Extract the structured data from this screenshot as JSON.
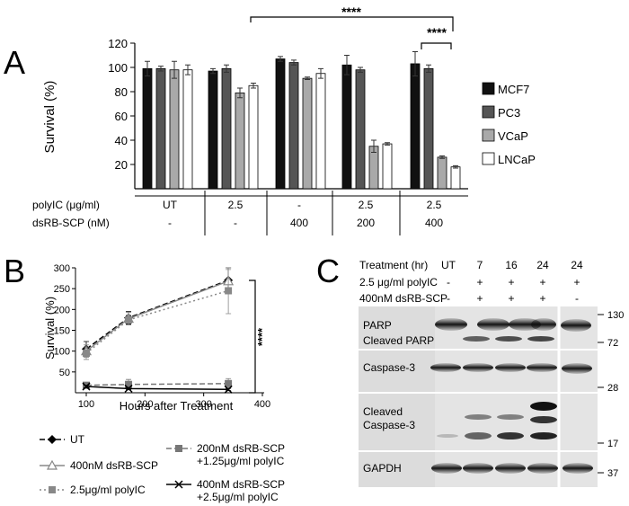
{
  "panel_a": {
    "letter": "A",
    "sig_outer": "****",
    "sig_inner": "****",
    "chart_data": {
      "type": "bar",
      "ylabel": "Survival (%)",
      "ylim": [
        0,
        120
      ],
      "yticks": [
        20,
        40,
        60,
        80,
        100,
        120
      ],
      "groups": [
        "UT",
        "2.5",
        "400",
        "2.5 / 200",
        "2.5 / 400"
      ],
      "series": [
        {
          "name": "MCF7",
          "color": "#111111",
          "values": [
            99,
            97,
            107,
            102,
            103
          ],
          "err": [
            6,
            2,
            2,
            8,
            10
          ]
        },
        {
          "name": "PC3",
          "color": "#555555",
          "values": [
            99,
            99,
            104,
            98,
            99
          ],
          "err": [
            2,
            3,
            2,
            2,
            3
          ]
        },
        {
          "name": "VCaP",
          "color": "#a9a9a9",
          "values": [
            98,
            79,
            91,
            35,
            26
          ],
          "err": [
            7,
            4,
            1,
            5,
            1
          ]
        },
        {
          "name": "LNCaP",
          "color": "#ffffff",
          "values": [
            98,
            85,
            95,
            37,
            18
          ],
          "err": [
            4,
            2,
            4,
            1,
            1
          ]
        }
      ],
      "legend_position": "right"
    },
    "table": {
      "row1_label": "polyIC (μg/ml)",
      "row2_label": "dsRB-SCP (nM)",
      "row1": [
        "UT",
        "2.5",
        "-",
        "2.5",
        "2.5"
      ],
      "row2": [
        "-",
        "-",
        "400",
        "200",
        "400"
      ]
    }
  },
  "panel_b": {
    "letter": "B",
    "sig": "****",
    "chart_data": {
      "type": "line",
      "xlabel": "Hours after Treatment",
      "ylabel": "Survival (%)",
      "xlim": [
        80,
        400
      ],
      "ylim": [
        0,
        300
      ],
      "xticks": [
        100,
        200,
        300,
        400
      ],
      "yticks": [
        50,
        100,
        150,
        200,
        250,
        300
      ],
      "x": [
        100,
        172,
        342
      ],
      "series": [
        {
          "name": "UT",
          "values": [
            105,
            180,
            270
          ],
          "err": [
            18,
            15,
            30
          ],
          "color": "#000000",
          "dash": "6,3",
          "marker": "diamond"
        },
        {
          "name": "400nM dsRB-SCP",
          "values": [
            100,
            178,
            268
          ],
          "err": [
            15,
            15,
            28
          ],
          "color": "#888888",
          "dash": "",
          "marker": "triangle"
        },
        {
          "name": "2.5μg/ml polyIC",
          "values": [
            95,
            175,
            245
          ],
          "err": [
            15,
            12,
            55
          ],
          "color": "#888888",
          "dash": "2,3",
          "marker": "square"
        },
        {
          "name": "200nM dsRB-SCP +1.25μg/ml polyIC",
          "values": [
            18,
            20,
            22
          ],
          "err": [
            5,
            12,
            12
          ],
          "color": "#777777",
          "dash": "6,3",
          "marker": "square"
        },
        {
          "name": "400nM dsRB-SCP +2.5μg/ml polyIC",
          "values": [
            15,
            10,
            8
          ],
          "err": [
            3,
            3,
            3
          ],
          "color": "#000000",
          "dash": "",
          "marker": "x"
        }
      ]
    },
    "legend": [
      {
        "line1": "UT",
        "line2": ""
      },
      {
        "line1": "400nM dsRB-SCP",
        "line2": ""
      },
      {
        "line1": "2.5μg/ml polyIC",
        "line2": ""
      },
      {
        "line1": "200nM dsRB-SCP",
        "line2": "+1.25μg/ml polyIC"
      },
      {
        "line1": "400nM dsRB-SCP",
        "line2": "+2.5μg/ml polyIC"
      }
    ]
  },
  "panel_c": {
    "letter": "C",
    "header_label": "Treatment (hr)",
    "row2_label": "2.5 μg/ml polyIC",
    "row3_label": "400nM dsRB-SCP",
    "times": [
      "UT",
      "7",
      "16",
      "24",
      "24"
    ],
    "polyic": [
      "-",
      "+",
      "+",
      "+",
      "+"
    ],
    "dsrb": [
      "-",
      "+",
      "+",
      "+",
      "-"
    ],
    "blot_labels": {
      "parp": "PARP",
      "cleaved_parp": "Cleaved PARP",
      "caspase3": "Caspase-3",
      "cleaved_caspase3_line1": "Cleaved",
      "cleaved_caspase3_line2": "Caspase-3",
      "gapdh": "GAPDH"
    },
    "markers": [
      "130",
      "72",
      "28",
      "17",
      "37"
    ]
  }
}
